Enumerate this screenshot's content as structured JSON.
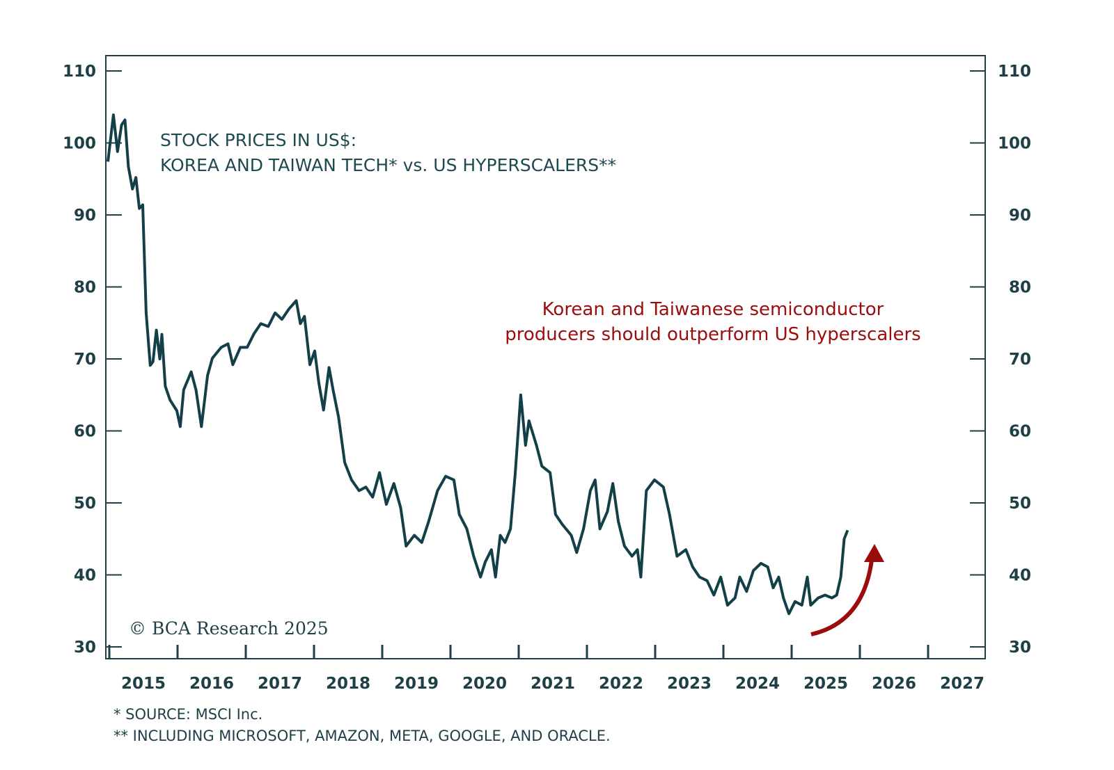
{
  "chart_data": {
    "type": "line",
    "title": "STOCK PRICES IN US$:",
    "subtitle": "KOREA AND TAIWAN TECH* vs. US HYPERSCALERS**",
    "xlabel": "",
    "ylabel": "",
    "xlim": [
      2015,
      2027.85
    ],
    "ylim": [
      30,
      110
    ],
    "y_ticks": [
      30,
      40,
      50,
      60,
      70,
      80,
      90,
      100,
      110
    ],
    "x_ticks": [
      "2015",
      "2016",
      "2017",
      "2018",
      "2019",
      "2020",
      "2021",
      "2022",
      "2023",
      "2024",
      "2025",
      "2026",
      "2027"
    ],
    "grid": false,
    "line_color": "#123f48",
    "annotation": {
      "lines": [
        "Korean and Taiwanese semiconductor",
        "producers should outperform US hyperscalers"
      ],
      "color": "#9b0d0d"
    },
    "copyright": "© BCA Research 2025",
    "footnotes": [
      "* SOURCE: MSCI Inc.",
      "** INCLUDING MICROSOFT, AMAZON, META, GOOGLE, AND ORACLE."
    ],
    "series": [
      {
        "values": [
          [
            2014.98,
            97.4
          ],
          [
            2015.06,
            103.9
          ],
          [
            2015.12,
            98.8
          ],
          [
            2015.18,
            102.5
          ],
          [
            2015.23,
            103.2
          ],
          [
            2015.28,
            96.7
          ],
          [
            2015.34,
            93.6
          ],
          [
            2015.39,
            95.2
          ],
          [
            2015.44,
            90.9
          ],
          [
            2015.49,
            91.4
          ],
          [
            2015.54,
            76.4
          ],
          [
            2015.6,
            69.1
          ],
          [
            2015.64,
            69.6
          ],
          [
            2015.69,
            74.0
          ],
          [
            2015.74,
            70.0
          ],
          [
            2015.77,
            73.4
          ],
          [
            2015.82,
            66.2
          ],
          [
            2015.89,
            64.3
          ],
          [
            2015.99,
            62.8
          ],
          [
            2016.04,
            60.6
          ],
          [
            2016.09,
            65.7
          ],
          [
            2016.2,
            68.2
          ],
          [
            2016.27,
            65.7
          ],
          [
            2016.35,
            60.6
          ],
          [
            2016.44,
            67.7
          ],
          [
            2016.51,
            70.1
          ],
          [
            2016.64,
            71.6
          ],
          [
            2016.74,
            72.1
          ],
          [
            2016.81,
            69.2
          ],
          [
            2016.92,
            71.6
          ],
          [
            2017.02,
            71.6
          ],
          [
            2017.12,
            73.5
          ],
          [
            2017.22,
            74.9
          ],
          [
            2017.33,
            74.5
          ],
          [
            2017.43,
            76.4
          ],
          [
            2017.53,
            75.5
          ],
          [
            2017.63,
            76.9
          ],
          [
            2017.74,
            78.1
          ],
          [
            2017.8,
            74.9
          ],
          [
            2017.86,
            75.9
          ],
          [
            2017.94,
            69.2
          ],
          [
            2018.01,
            71.1
          ],
          [
            2018.07,
            66.7
          ],
          [
            2018.14,
            62.9
          ],
          [
            2018.22,
            68.8
          ],
          [
            2018.28,
            65.7
          ],
          [
            2018.36,
            61.9
          ],
          [
            2018.45,
            55.6
          ],
          [
            2018.55,
            53.2
          ],
          [
            2018.66,
            51.7
          ],
          [
            2018.76,
            52.2
          ],
          [
            2018.86,
            50.8
          ],
          [
            2018.96,
            54.2
          ],
          [
            2019.06,
            49.8
          ],
          [
            2019.17,
            52.7
          ],
          [
            2019.27,
            49.3
          ],
          [
            2019.35,
            44.0
          ],
          [
            2019.47,
            45.5
          ],
          [
            2019.58,
            44.5
          ],
          [
            2019.68,
            47.4
          ],
          [
            2019.81,
            51.7
          ],
          [
            2019.93,
            53.7
          ],
          [
            2020.05,
            53.2
          ],
          [
            2020.13,
            48.4
          ],
          [
            2020.24,
            46.4
          ],
          [
            2020.34,
            42.6
          ],
          [
            2020.44,
            39.7
          ],
          [
            2020.51,
            41.8
          ],
          [
            2020.6,
            43.5
          ],
          [
            2020.66,
            39.7
          ],
          [
            2020.73,
            45.5
          ],
          [
            2020.8,
            44.5
          ],
          [
            2020.88,
            46.4
          ],
          [
            2020.95,
            54.2
          ],
          [
            2021.03,
            65.0
          ],
          [
            2021.1,
            58.0
          ],
          [
            2021.15,
            61.4
          ],
          [
            2021.26,
            58.0
          ],
          [
            2021.34,
            55.1
          ],
          [
            2021.46,
            54.2
          ],
          [
            2021.54,
            48.4
          ],
          [
            2021.64,
            47.0
          ],
          [
            2021.77,
            45.5
          ],
          [
            2021.85,
            43.1
          ],
          [
            2021.95,
            46.4
          ],
          [
            2022.05,
            51.7
          ],
          [
            2022.12,
            53.2
          ],
          [
            2022.19,
            46.4
          ],
          [
            2022.3,
            48.8
          ],
          [
            2022.38,
            52.7
          ],
          [
            2022.46,
            47.4
          ],
          [
            2022.55,
            44.0
          ],
          [
            2022.66,
            42.6
          ],
          [
            2022.74,
            43.5
          ],
          [
            2022.79,
            39.7
          ],
          [
            2022.87,
            51.7
          ],
          [
            2022.99,
            53.2
          ],
          [
            2023.12,
            52.2
          ],
          [
            2023.21,
            48.4
          ],
          [
            2023.32,
            42.6
          ],
          [
            2023.45,
            43.5
          ],
          [
            2023.55,
            41.1
          ],
          [
            2023.65,
            39.7
          ],
          [
            2023.76,
            39.2
          ],
          [
            2023.86,
            37.2
          ],
          [
            2023.96,
            39.7
          ],
          [
            2024.06,
            35.8
          ],
          [
            2024.17,
            36.8
          ],
          [
            2024.24,
            39.7
          ],
          [
            2024.34,
            37.7
          ],
          [
            2024.44,
            40.6
          ],
          [
            2024.55,
            41.6
          ],
          [
            2024.65,
            41.1
          ],
          [
            2024.73,
            38.2
          ],
          [
            2024.81,
            39.7
          ],
          [
            2024.88,
            36.8
          ],
          [
            2024.96,
            34.6
          ],
          [
            2025.05,
            36.3
          ],
          [
            2025.15,
            35.8
          ],
          [
            2025.23,
            39.7
          ],
          [
            2025.28,
            35.8
          ],
          [
            2025.39,
            36.8
          ],
          [
            2025.49,
            37.2
          ],
          [
            2025.59,
            36.8
          ],
          [
            2025.66,
            37.2
          ],
          [
            2025.72,
            39.7
          ],
          [
            2025.77,
            45.0
          ],
          [
            2025.82,
            46.2
          ]
        ]
      }
    ]
  }
}
